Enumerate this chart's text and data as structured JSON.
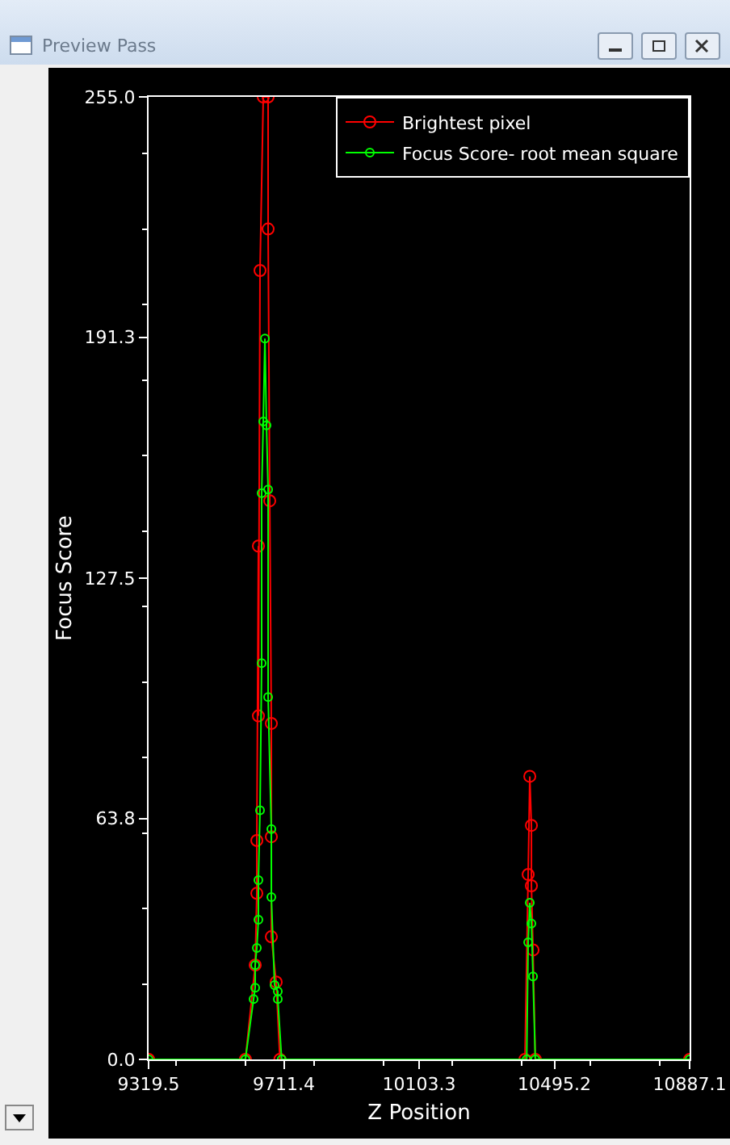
{
  "chart_data": {
    "type": "line",
    "title": "Preview Pass",
    "xlabel": "Z Position",
    "ylabel": "Focus Score",
    "xlim": [
      9319.5,
      10887.1
    ],
    "xticks": [
      9319.5,
      9711.4,
      10103.3,
      10495.2,
      10887.1
    ],
    "ylim": [
      0,
      255
    ],
    "yticks": [
      {
        "value": 0,
        "label": "0.0"
      },
      63.8,
      127.5,
      191.3,
      {
        "value": 255,
        "label": "255.0"
      }
    ],
    "grid": false,
    "legend": "top right",
    "marker": "circle",
    "line_style": "solid",
    "series": [
      {
        "name": "Brightest pixel",
        "color": "#ff0000",
        "x": [
          9319.5,
          9600,
          9628.4,
          9633.1,
          9633.1,
          9637.7,
          9637.7,
          9642.4,
          9651.8,
          9665.8,
          9665.8,
          9670.5,
          9675.2,
          9675.2,
          9675.2,
          9689.2,
          9700,
          10410,
          10419.3,
          10424,
          10428.7,
          10428.7,
          10433.4,
          10440,
          10887.1
        ],
        "values": [
          0,
          0,
          25,
          44,
          58,
          136,
          91,
          209,
          255,
          255,
          220,
          148,
          89,
          59,
          32.5,
          20.5,
          0,
          0,
          49,
          75,
          62,
          46,
          29,
          0,
          0
        ]
      },
      {
        "name": "Focus Score- root mean square",
        "color": "#00ff00",
        "x": [
          9319.5,
          9600,
          9623.7,
          9628.4,
          9628.4,
          9633.1,
          9637.7,
          9637.7,
          9642.4,
          9647.1,
          9647.1,
          9651.8,
          9656.5,
          9661.1,
          9665.8,
          9665.8,
          9675.2,
          9675.2,
          9684.5,
          9693.9,
          9693.9,
          9705,
          10415,
          10419.3,
          10424,
          10428.7,
          10433.4,
          10440,
          10887.1
        ],
        "values": [
          0,
          0,
          16,
          19,
          25,
          29.5,
          37,
          47.5,
          66,
          105,
          150,
          169,
          191,
          168,
          151,
          96,
          61,
          43,
          19.7,
          18,
          16,
          0,
          0,
          31,
          41.5,
          36,
          22,
          0,
          0
        ]
      }
    ]
  }
}
